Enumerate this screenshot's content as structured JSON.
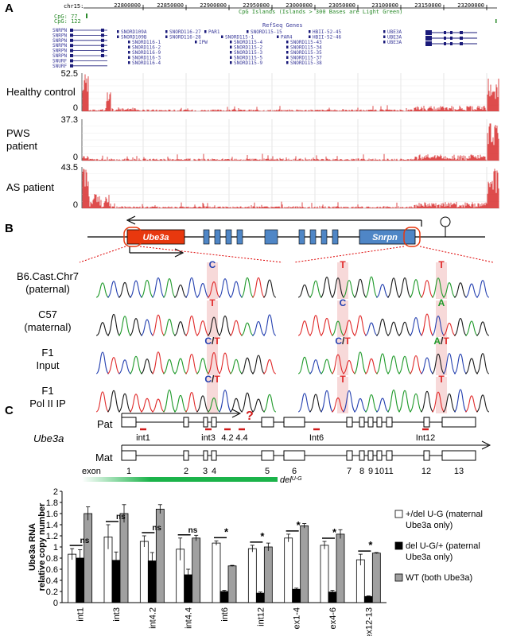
{
  "panels": {
    "a": "A",
    "b": "B",
    "c": "C"
  },
  "panel_a": {
    "chrom_label": "chr15:",
    "ruler_ticks": [
      "22800000",
      "22850000",
      "22900000",
      "22950000",
      "23000000",
      "23050000",
      "23100000",
      "23150000",
      "23200000"
    ],
    "cpg_title": "CpG Islands (Islands > 300 Bases are Light Green)",
    "cpg_rows": [
      "CpG: 77",
      "CpG: 122"
    ],
    "refseq_title": "RefSeq Genes",
    "snrpn_rows": [
      "SNRPN",
      "SNRPN",
      "SNRPN",
      "SNRPN",
      "SNRPN",
      "SNRPN",
      "SNURF",
      "SNURF"
    ],
    "gene_labels": [
      "SNORD109A",
      "SNORD116-27",
      "PAR1",
      "SNORD115-15",
      "HBII-52-45",
      "UBE3A",
      "SNORD109B",
      "SNORD116-28",
      "SNORD115-1",
      "PAR4",
      "HBII-52-46",
      "UBE3A",
      "SNORD116-1",
      "IPW",
      "SNORD115-4",
      "SNORD115-43",
      "UBE3A",
      "SNORD116-2",
      "SNORD115-2",
      "SNORD115-34",
      "SNORD116-9",
      "SNORD115-3",
      "SNORD115-35",
      "SNORD116-3",
      "SNORD115-5",
      "SNORD115-37",
      "SNORD116-4",
      "SNORD115-9",
      "SNORD115-38"
    ],
    "tracks": [
      {
        "label_lines": [
          "Healthy control"
        ],
        "max": "52.5",
        "min": "0"
      },
      {
        "label_lines": [
          "PWS",
          "patient"
        ],
        "max": "37.3",
        "min": "0"
      },
      {
        "label_lines": [
          "AS patient"
        ],
        "max": "43.5",
        "min": "0"
      }
    ]
  },
  "panel_b": {
    "gene_left": "Ube3a",
    "gene_right": "Snrpn",
    "rows": [
      {
        "label_lines": [
          "B6.Cast.Chr7",
          "(paternal)"
        ],
        "left_base": "C",
        "right_bases": [
          "T",
          "T"
        ]
      },
      {
        "label_lines": [
          "C57",
          "(maternal)"
        ],
        "left_base": "T",
        "right_bases": [
          "C",
          "A"
        ]
      },
      {
        "label_lines": [
          "F1",
          "Input"
        ],
        "left_base": "C/T",
        "right_bases": [
          "C/T",
          "A/T"
        ]
      },
      {
        "label_lines": [
          "F1",
          "Pol II IP"
        ],
        "left_base": "C/T",
        "right_bases": [
          "T",
          "T"
        ]
      }
    ],
    "colors": {
      "ube3a": "#e8380e",
      "snrpn": "#4f86c6",
      "exon": "#4f86c6"
    }
  },
  "panel_c": {
    "gene_name": "Ube3a",
    "pat_label": "Pat",
    "mat_label": "Mat",
    "unknown_mark": "?",
    "exon_word": "exon",
    "exon_numbers": [
      "1",
      "2",
      "3",
      "4",
      "5",
      "6",
      "7",
      "8",
      "9",
      "10",
      "11",
      "12",
      "13"
    ],
    "primer_labels": [
      "int1",
      "int3",
      "4.2",
      "4.4",
      "Int6",
      "Int12"
    ],
    "deletion_label": "del",
    "deletion_sup": "U-G"
  },
  "chart_data": {
    "type": "bar",
    "ylabel": "Ube3a RNA relative copy number",
    "ylim": [
      0,
      2
    ],
    "yticks": [
      "0",
      "0.2",
      "0.4",
      "0.6",
      "0.8",
      "1",
      "1.2",
      "1.4",
      "1.6",
      "1.8",
      "2"
    ],
    "categories": [
      "int1",
      "int3",
      "int4.2",
      "int4.4",
      "int6",
      "int12",
      "ex1-4",
      "ex4-6",
      "ex12-13"
    ],
    "series": [
      {
        "name": "+/del U-G (maternal Ube3a only)",
        "color": "#ffffff",
        "values": [
          0.87,
          1.18,
          1.1,
          0.96,
          1.07,
          0.97,
          1.16,
          1.03,
          0.77
        ],
        "errors": [
          0.1,
          0.22,
          0.1,
          0.2,
          0.04,
          0.06,
          0.07,
          0.07,
          0.1
        ]
      },
      {
        "name": "del U-G/+ (paternal Ube3a only)",
        "color": "#000000",
        "values": [
          0.8,
          0.76,
          0.75,
          0.5,
          0.2,
          0.17,
          0.24,
          0.19,
          0.11
        ],
        "errors": [
          0.15,
          0.15,
          0.15,
          0.1,
          0.02,
          0.02,
          0.02,
          0.03,
          0.01
        ]
      },
      {
        "name": "WT (both Ube3a)",
        "color": "#a0a0a0",
        "values": [
          1.6,
          1.6,
          1.68,
          1.16,
          0.66,
          1.0,
          1.38,
          1.23,
          0.89
        ],
        "errors": [
          0.12,
          0.16,
          0.08,
          0.05,
          0.01,
          0.07,
          0.04,
          0.08,
          0.01
        ]
      }
    ],
    "significance": [
      "ns",
      "ns",
      "ns",
      "ns",
      "*",
      "*",
      "*",
      "*",
      "*"
    ],
    "legend_lines": [
      [
        "+/del U-G (maternal",
        "Ube3a only)"
      ],
      [
        "del U-G/+ (paternal",
        "Ube3a only)"
      ],
      [
        "WT (both Ube3a)"
      ]
    ]
  }
}
